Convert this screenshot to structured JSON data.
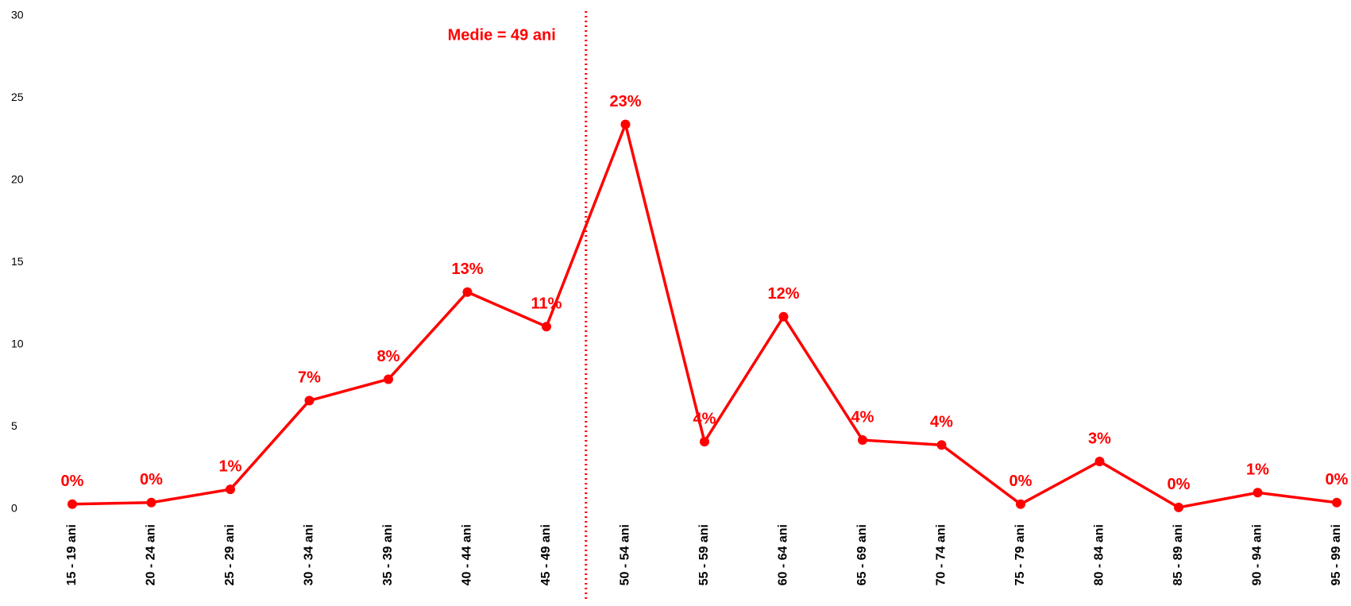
{
  "chart_data": {
    "type": "line",
    "annotations": [
      "Medie = 49 ani"
    ],
    "categories": [
      "15 - 19 ani",
      "20 - 24 ani",
      "25 - 29 ani",
      "30 - 34 ani",
      "35 - 39 ani",
      "40 - 44 ani",
      "45 - 49 ani",
      "50 - 54 ani",
      "55 - 59 ani",
      "60 - 64 ani",
      "65 - 69 ani",
      "70 - 74 ani",
      "75 - 79 ani",
      "80 - 84 ani",
      "85 - 89 ani",
      "90 - 94 ani",
      "95 - 99 ani"
    ],
    "series": [
      {
        "name": null,
        "color": "#ff0000",
        "values": [
          0.3,
          0.4,
          1.2,
          6.6,
          7.9,
          13.2,
          11.1,
          23.4,
          4.1,
          11.7,
          4.2,
          3.9,
          0.3,
          2.9,
          0.1,
          1.0,
          0.4
        ],
        "value_labels": [
          "0%",
          "0%",
          "1%",
          "7%",
          "8%",
          "13%",
          "11%",
          "23%",
          "4%",
          "12%",
          "4%",
          "4%",
          "0%",
          "3%",
          "0%",
          "1%",
          "0%"
        ]
      }
    ],
    "ylim": [
      0,
      30
    ],
    "yticks": [
      0,
      5,
      10,
      15,
      20,
      25,
      30
    ],
    "grid": false
  }
}
